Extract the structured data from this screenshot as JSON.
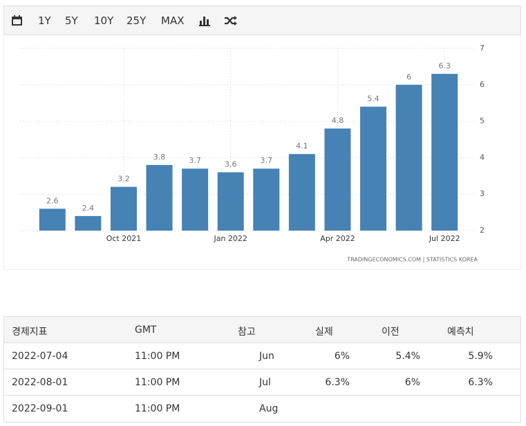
{
  "toolbar": {
    "buttons": [
      "1Y",
      "5Y",
      "10Y",
      "25Y",
      "MAX"
    ]
  },
  "chart_data": {
    "type": "bar",
    "categories": [
      null,
      null,
      "Oct 2021",
      null,
      null,
      "Jan 2022",
      null,
      null,
      "Apr 2022",
      null,
      null,
      "Jul 2022"
    ],
    "values": [
      2.6,
      2.4,
      3.2,
      3.8,
      3.7,
      3.6,
      3.7,
      4.1,
      4.8,
      5.4,
      6,
      6.3
    ],
    "color": "#4682b4",
    "ylim": [
      2,
      7
    ],
    "yticks": [
      2,
      3,
      4,
      5,
      6,
      7
    ],
    "grid": true,
    "source": "TRADINGECONOMICS.COM | STATISTICS KOREA"
  },
  "table": {
    "header": [
      "경제지표",
      "GMT",
      "참고",
      "실제",
      "이전",
      "예측치"
    ],
    "rows": [
      [
        "2022-07-04",
        "11:00 PM",
        "Jun",
        "6%",
        "5.4%",
        "5.9%"
      ],
      [
        "2022-08-01",
        "11:00 PM",
        "Jul",
        "6.3%",
        "6%",
        "6.3%"
      ],
      [
        "2022-09-01",
        "11:00 PM",
        "Aug"
      ]
    ]
  }
}
